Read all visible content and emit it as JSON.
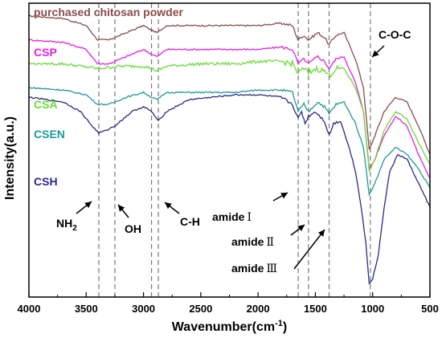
{
  "chart_data": {
    "type": "line",
    "xlabel": "Wavenumber(cm",
    "xlabel_sup": "-1",
    "xlabel_close": ")",
    "ylabel": "Intensity(a.u.)",
    "xlim": [
      4000,
      500
    ],
    "xticks": [
      4000,
      3500,
      3000,
      2500,
      2000,
      1500,
      1000,
      500
    ],
    "reference_lines": [
      3390,
      3250,
      2930,
      2870,
      1650,
      1560,
      1380,
      1020
    ],
    "series": [
      {
        "name": "purchased chitosan powder",
        "color": "#8B4C4C",
        "points": [
          [
            4000,
            0.7
          ],
          [
            3700,
            0.69
          ],
          [
            3500,
            0.66
          ],
          [
            3400,
            0.6
          ],
          [
            3300,
            0.6
          ],
          [
            3150,
            0.63
          ],
          [
            3000,
            0.66
          ],
          [
            2930,
            0.64
          ],
          [
            2880,
            0.63
          ],
          [
            2800,
            0.66
          ],
          [
            2500,
            0.66
          ],
          [
            2200,
            0.66
          ],
          [
            2000,
            0.66
          ],
          [
            1800,
            0.67
          ],
          [
            1700,
            0.66
          ],
          [
            1650,
            0.6
          ],
          [
            1600,
            0.62
          ],
          [
            1560,
            0.6
          ],
          [
            1480,
            0.63
          ],
          [
            1420,
            0.61
          ],
          [
            1380,
            0.58
          ],
          [
            1320,
            0.62
          ],
          [
            1250,
            0.63
          ],
          [
            1150,
            0.52
          ],
          [
            1080,
            0.4
          ],
          [
            1030,
            0.14
          ],
          [
            980,
            0.2
          ],
          [
            900,
            0.3
          ],
          [
            800,
            0.36
          ],
          [
            700,
            0.34
          ],
          [
            600,
            0.24
          ],
          [
            500,
            0.12
          ]
        ]
      },
      {
        "name": "CSP",
        "color": "#E61EE6",
        "points": [
          [
            4000,
            0.6
          ],
          [
            3700,
            0.59
          ],
          [
            3500,
            0.56
          ],
          [
            3400,
            0.5
          ],
          [
            3300,
            0.5
          ],
          [
            3150,
            0.53
          ],
          [
            3000,
            0.56
          ],
          [
            2930,
            0.54
          ],
          [
            2880,
            0.53
          ],
          [
            2800,
            0.56
          ],
          [
            2500,
            0.56
          ],
          [
            2200,
            0.56
          ],
          [
            2000,
            0.56
          ],
          [
            1800,
            0.57
          ],
          [
            1700,
            0.56
          ],
          [
            1650,
            0.5
          ],
          [
            1600,
            0.52
          ],
          [
            1560,
            0.5
          ],
          [
            1480,
            0.53
          ],
          [
            1420,
            0.51
          ],
          [
            1380,
            0.48
          ],
          [
            1320,
            0.52
          ],
          [
            1250,
            0.53
          ],
          [
            1150,
            0.42
          ],
          [
            1080,
            0.3
          ],
          [
            1030,
            0.06
          ],
          [
            980,
            0.1
          ],
          [
            900,
            0.2
          ],
          [
            800,
            0.28
          ],
          [
            700,
            0.24
          ],
          [
            600,
            0.12
          ],
          [
            500,
            0.02
          ]
        ]
      },
      {
        "name": "CSA",
        "color": "#66DD33",
        "points": [
          [
            4000,
            0.5
          ],
          [
            3700,
            0.5
          ],
          [
            3400,
            0.48
          ],
          [
            3200,
            0.49
          ],
          [
            3000,
            0.49
          ],
          [
            2930,
            0.48
          ],
          [
            2880,
            0.47
          ],
          [
            2800,
            0.49
          ],
          [
            2500,
            0.5
          ],
          [
            2200,
            0.5
          ],
          [
            2000,
            0.51
          ],
          [
            1800,
            0.51
          ],
          [
            1700,
            0.5
          ],
          [
            1650,
            0.46
          ],
          [
            1600,
            0.48
          ],
          [
            1560,
            0.46
          ],
          [
            1500,
            0.48
          ],
          [
            1420,
            0.47
          ],
          [
            1380,
            0.45
          ],
          [
            1320,
            0.48
          ],
          [
            1250,
            0.48
          ],
          [
            1150,
            0.4
          ],
          [
            1080,
            0.3
          ],
          [
            1030,
            0.05
          ],
          [
            980,
            0.1
          ],
          [
            900,
            0.22
          ],
          [
            800,
            0.3
          ],
          [
            700,
            0.27
          ],
          [
            600,
            0.17
          ],
          [
            500,
            0.08
          ]
        ]
      },
      {
        "name": "CSEN",
        "color": "#1E9A96",
        "points": [
          [
            4000,
            0.4
          ],
          [
            3700,
            0.39
          ],
          [
            3500,
            0.37
          ],
          [
            3400,
            0.33
          ],
          [
            3300,
            0.33
          ],
          [
            3150,
            0.36
          ],
          [
            3000,
            0.38
          ],
          [
            2930,
            0.36
          ],
          [
            2880,
            0.35
          ],
          [
            2800,
            0.38
          ],
          [
            2500,
            0.38
          ],
          [
            2200,
            0.38
          ],
          [
            2000,
            0.39
          ],
          [
            1800,
            0.39
          ],
          [
            1700,
            0.38
          ],
          [
            1650,
            0.3
          ],
          [
            1600,
            0.33
          ],
          [
            1560,
            0.3
          ],
          [
            1480,
            0.34
          ],
          [
            1420,
            0.32
          ],
          [
            1380,
            0.29
          ],
          [
            1320,
            0.33
          ],
          [
            1250,
            0.34
          ],
          [
            1150,
            0.25
          ],
          [
            1080,
            0.15
          ],
          [
            1030,
            -0.05
          ],
          [
            980,
            0.0
          ],
          [
            900,
            0.1
          ],
          [
            800,
            0.15
          ],
          [
            700,
            0.12
          ],
          [
            600,
            0.06
          ],
          [
            500,
            -0.02
          ]
        ]
      },
      {
        "name": "CSH",
        "color": "#2A2A88",
        "points": [
          [
            4000,
            0.36
          ],
          [
            3700,
            0.34
          ],
          [
            3550,
            0.3
          ],
          [
            3450,
            0.24
          ],
          [
            3390,
            0.21
          ],
          [
            3330,
            0.22
          ],
          [
            3250,
            0.24
          ],
          [
            3100,
            0.3
          ],
          [
            3000,
            0.32
          ],
          [
            2930,
            0.3
          ],
          [
            2870,
            0.26
          ],
          [
            2800,
            0.3
          ],
          [
            2600,
            0.35
          ],
          [
            2400,
            0.36
          ],
          [
            2200,
            0.37
          ],
          [
            2000,
            0.37
          ],
          [
            1800,
            0.36
          ],
          [
            1700,
            0.33
          ],
          [
            1650,
            0.27
          ],
          [
            1620,
            0.3
          ],
          [
            1590,
            0.25
          ],
          [
            1560,
            0.28
          ],
          [
            1500,
            0.3
          ],
          [
            1420,
            0.26
          ],
          [
            1380,
            0.2
          ],
          [
            1340,
            0.25
          ],
          [
            1280,
            0.26
          ],
          [
            1200,
            0.14
          ],
          [
            1150,
            0.05
          ],
          [
            1100,
            -0.1
          ],
          [
            1060,
            -0.25
          ],
          [
            1030,
            -0.42
          ],
          [
            1000,
            -0.4
          ],
          [
            950,
            -0.3
          ],
          [
            900,
            -0.1
          ],
          [
            850,
            0.05
          ],
          [
            780,
            0.12
          ],
          [
            700,
            0.1
          ],
          [
            600,
            0.0
          ],
          [
            500,
            -0.1
          ]
        ]
      }
    ],
    "annotations": [
      {
        "text": "NH",
        "sub": "2"
      },
      {
        "text": "OH"
      },
      {
        "text": "C-H"
      },
      {
        "text": "amide",
        "roman": "Ⅰ"
      },
      {
        "text": "amide",
        "roman": "Ⅱ"
      },
      {
        "text": "amide",
        "roman": "Ⅲ"
      },
      {
        "text": "C-O-C"
      }
    ]
  }
}
